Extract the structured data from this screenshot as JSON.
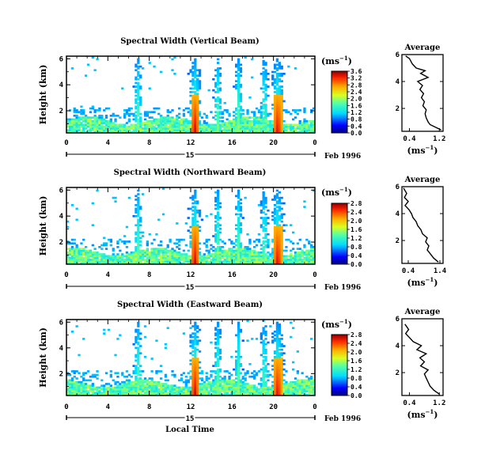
{
  "chart_data": [
    {
      "type": "heatmap",
      "title": "Spectral Width (Vertical Beam)",
      "ylabel": "Height (km)",
      "x_ticks": [
        "0",
        "4",
        "8",
        "12",
        "16",
        "20",
        "0"
      ],
      "xlim": [
        0,
        24
      ],
      "y_ticks": [
        "2",
        "4",
        "6"
      ],
      "ylim": [
        0.3,
        6.2
      ],
      "day_label": "15",
      "date_label": "Feb 1996",
      "colorbar": {
        "unit": "(ms",
        "unit_exp": "−1",
        "unit_close": ")",
        "ticks": [
          "0.0",
          "0.4",
          "0.8",
          "1.2",
          "1.6",
          "2.0",
          "2.4",
          "2.8",
          "3.2",
          "3.6"
        ],
        "range": [
          0,
          3.6
        ]
      },
      "intense_times": [
        12.3,
        20.3
      ],
      "convective_times": [
        6.8,
        12.3,
        14.5,
        16.5,
        19.0,
        20.3
      ],
      "average": {
        "title": "Average",
        "xlabel": "(ms",
        "xlabel_exp": "−1",
        "xlabel_close": ")",
        "x_ticks": [
          "0.4",
          "1.2"
        ],
        "xlim": [
          0.2,
          1.3
        ],
        "ylim": [
          0.3,
          6.0
        ],
        "y_ticks": [
          "2",
          "4",
          "6"
        ],
        "profile": [
          [
            1.25,
            0.4
          ],
          [
            1.1,
            0.6
          ],
          [
            0.95,
            0.8
          ],
          [
            0.9,
            1.0
          ],
          [
            0.85,
            1.3
          ],
          [
            0.82,
            1.6
          ],
          [
            0.85,
            1.9
          ],
          [
            0.76,
            2.2
          ],
          [
            0.8,
            2.5
          ],
          [
            0.72,
            2.8
          ],
          [
            0.78,
            3.1
          ],
          [
            0.68,
            3.4
          ],
          [
            0.75,
            3.7
          ],
          [
            0.62,
            4.0
          ],
          [
            0.9,
            4.3
          ],
          [
            0.7,
            4.6
          ],
          [
            0.82,
            4.8
          ],
          [
            0.58,
            5.0
          ],
          [
            0.48,
            5.3
          ],
          [
            0.4,
            5.7
          ],
          [
            0.3,
            5.9
          ]
        ]
      }
    },
    {
      "type": "heatmap",
      "title": "Spectral Width (Northward Beam)",
      "ylabel": "Height (km)",
      "x_ticks": [
        "0",
        "4",
        "8",
        "12",
        "16",
        "20",
        "0"
      ],
      "xlim": [
        0,
        24
      ],
      "y_ticks": [
        "2",
        "4",
        "6"
      ],
      "ylim": [
        0.3,
        6.2
      ],
      "day_label": "15",
      "date_label": "Feb 1996",
      "colorbar": {
        "unit": "(ms",
        "unit_exp": "−1",
        "unit_close": ")",
        "ticks": [
          "0.0",
          "0.4",
          "0.8",
          "1.2",
          "1.6",
          "2.0",
          "2.4",
          "2.8"
        ],
        "range": [
          0,
          2.8
        ]
      },
      "intense_times": [
        12.3,
        20.3
      ],
      "convective_times": [
        6.8,
        12.3,
        14.5,
        16.5,
        19.0,
        20.3
      ],
      "average": {
        "title": "Average",
        "xlabel": "(ms",
        "xlabel_exp": "−1",
        "xlabel_close": ")",
        "x_ticks": [
          "0.4",
          "1.4"
        ],
        "xlim": [
          0.2,
          1.5
        ],
        "ylim": [
          0.3,
          6.0
        ],
        "y_ticks": [
          "2",
          "4",
          "6"
        ],
        "profile": [
          [
            1.35,
            0.4
          ],
          [
            1.2,
            0.7
          ],
          [
            1.1,
            1.0
          ],
          [
            1.0,
            1.3
          ],
          [
            1.05,
            1.6
          ],
          [
            0.95,
            1.9
          ],
          [
            1.0,
            2.2
          ],
          [
            0.85,
            2.5
          ],
          [
            0.8,
            2.8
          ],
          [
            0.7,
            3.1
          ],
          [
            0.65,
            3.4
          ],
          [
            0.55,
            3.7
          ],
          [
            0.5,
            4.0
          ],
          [
            0.42,
            4.3
          ],
          [
            0.3,
            4.6
          ],
          [
            0.4,
            4.9
          ],
          [
            0.28,
            5.2
          ],
          [
            0.35,
            5.5
          ],
          [
            0.25,
            5.9
          ]
        ]
      }
    },
    {
      "type": "heatmap",
      "title": "Spectral Width (Eastward Beam)",
      "ylabel": "Height (km)",
      "x_ticks": [
        "0",
        "4",
        "8",
        "12",
        "16",
        "20",
        "0"
      ],
      "xlim": [
        0,
        24
      ],
      "y_ticks": [
        "2",
        "4",
        "6"
      ],
      "ylim": [
        0.3,
        6.2
      ],
      "day_label": "15",
      "date_label": "Feb 1996",
      "colorbar": {
        "unit": "(ms",
        "unit_exp": "−1",
        "unit_close": ")",
        "ticks": [
          "0.0",
          "0.4",
          "0.8",
          "1.2",
          "1.6",
          "2.0",
          "2.4",
          "2.8"
        ],
        "range": [
          0,
          2.8
        ]
      },
      "intense_times": [
        12.3,
        20.3
      ],
      "convective_times": [
        6.8,
        12.3,
        14.5,
        16.5,
        19.0,
        20.3
      ],
      "average": {
        "title": "Average",
        "xlabel": "(ms",
        "xlabel_exp": "−1",
        "xlabel_close": ")",
        "x_ticks": [
          "0.4",
          "1.2"
        ],
        "xlim": [
          0.2,
          1.3
        ],
        "ylim": [
          0.3,
          6.0
        ],
        "y_ticks": [
          "2",
          "4",
          "6"
        ],
        "profile": [
          [
            1.2,
            0.4
          ],
          [
            1.05,
            0.7
          ],
          [
            0.95,
            1.0
          ],
          [
            0.9,
            1.3
          ],
          [
            0.85,
            1.6
          ],
          [
            0.8,
            1.9
          ],
          [
            0.9,
            2.2
          ],
          [
            0.7,
            2.5
          ],
          [
            0.8,
            2.8
          ],
          [
            0.68,
            3.1
          ],
          [
            0.85,
            3.4
          ],
          [
            0.6,
            3.7
          ],
          [
            0.72,
            4.0
          ],
          [
            0.5,
            4.3
          ],
          [
            0.4,
            4.6
          ],
          [
            0.3,
            4.9
          ],
          [
            0.38,
            5.2
          ],
          [
            0.28,
            5.6
          ]
        ]
      }
    }
  ],
  "x_axis_label": "Local Time"
}
